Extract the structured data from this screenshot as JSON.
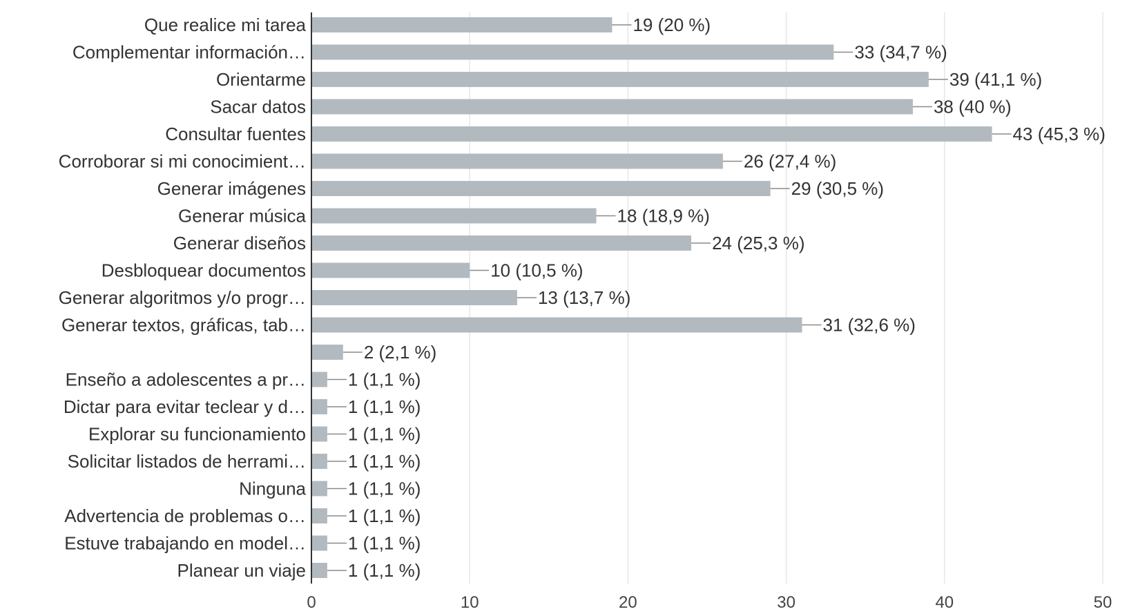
{
  "chart_data": {
    "type": "bar",
    "orientation": "horizontal",
    "categories": [
      "Que realice mi tarea",
      "Complementar información…",
      "Orientarme",
      "Sacar datos",
      "Consultar fuentes",
      "Corroborar si mi conocimient…",
      "Generar imágenes",
      "Generar música",
      "Generar diseños",
      "Desbloquear documentos",
      "Generar algoritmos y/o progr…",
      "Generar textos, gráficas, tab…",
      "",
      "Enseño a adolescentes a pr…",
      "Dictar para evitar teclear y d…",
      "Explorar su funcionamiento",
      "Solicitar listados de herrami…",
      "Ninguna",
      "Advertencia de problemas o…",
      "Estuve trabajando en model…",
      "Planear un viaje"
    ],
    "values": [
      19,
      33,
      39,
      38,
      43,
      26,
      29,
      18,
      24,
      10,
      13,
      31,
      2,
      1,
      1,
      1,
      1,
      1,
      1,
      1,
      1
    ],
    "value_labels": [
      "19 (20 %)",
      "33 (34,7 %)",
      "39 (41,1 %)",
      "38 (40 %)",
      "43 (45,3 %)",
      "26 (27,4 %)",
      "29 (30,5 %)",
      "18 (18,9 %)",
      "24 (25,3 %)",
      "10 (10,5 %)",
      "13 (13,7 %)",
      "31 (32,6 %)",
      "2 (2,1 %)",
      "1 (1,1 %)",
      "1 (1,1 %)",
      "1 (1,1 %)",
      "1 (1,1 %)",
      "1 (1,1 %)",
      "1 (1,1 %)",
      "1 (1,1 %)",
      "1 (1,1 %)"
    ],
    "xlim": [
      0,
      50
    ],
    "xticks": [
      0,
      10,
      20,
      30,
      40,
      50
    ],
    "grid": true,
    "title": "",
    "xlabel": "",
    "ylabel": "",
    "colors": {
      "bar": "#b2bac0",
      "grid": "#e6e6e6",
      "axis": "#333333",
      "text": "#333333",
      "leader": "#8a8a8a"
    }
  }
}
